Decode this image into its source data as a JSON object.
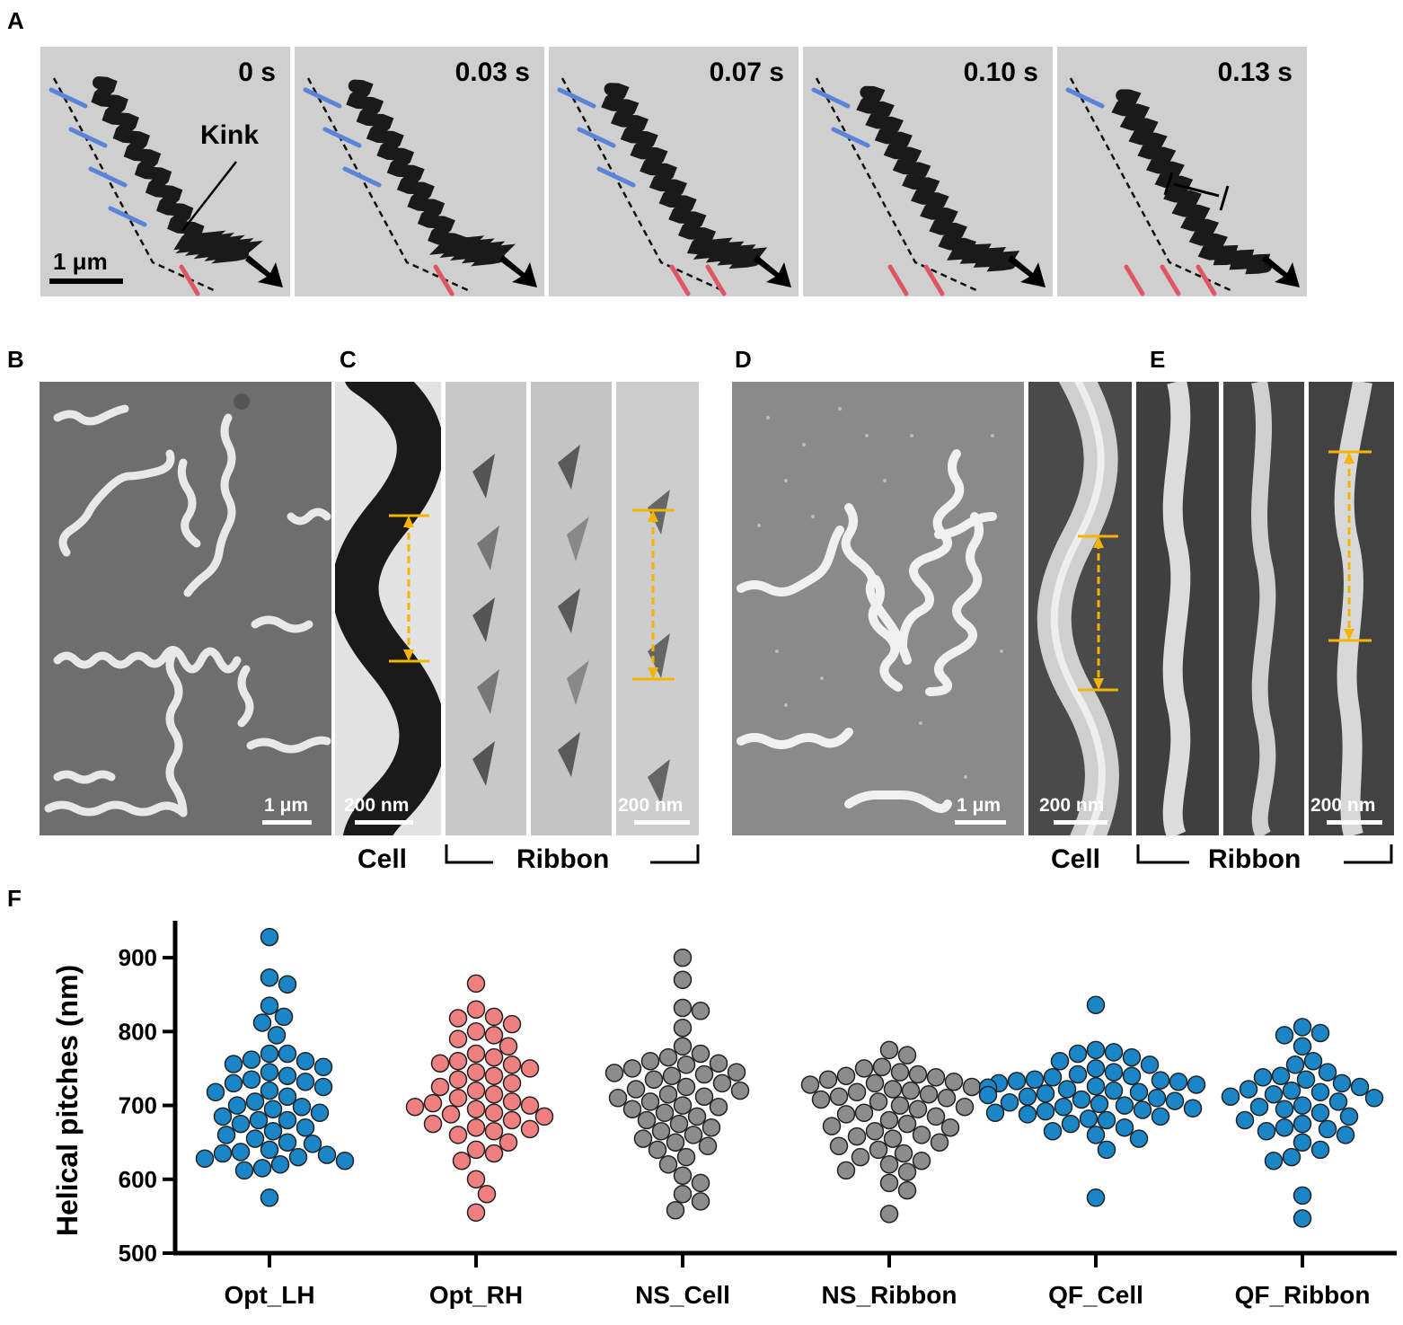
{
  "panels": {
    "A": {
      "label": "A",
      "times": [
        "0 s",
        "0.03 s",
        "0.07 s",
        "0.10 s",
        "0.13 s"
      ],
      "kink_label": "Kink",
      "scale_label": "1 μm"
    },
    "B": {
      "label": "B",
      "scale_label": "1 μm"
    },
    "C": {
      "label": "C",
      "scale_label_cell": "200 nm",
      "scale_label_ribbon": "200 nm",
      "cell_caption": "Cell",
      "ribbon_caption": "Ribbon"
    },
    "D": {
      "label": "D",
      "scale_label": "1 μm"
    },
    "E": {
      "label": "E",
      "scale_label_cell": "200 nm",
      "scale_label_ribbon": "200 nm",
      "cell_caption": "Cell",
      "ribbon_caption": "Ribbon"
    },
    "F": {
      "label": "F"
    }
  },
  "colors": {
    "blue_mark": "#5b84d8",
    "red_mark": "#e05566",
    "pitch_arrow": "#f5b400",
    "lh": "#1a86c7",
    "rh": "#f08080",
    "gray": "#8c8c8c"
  },
  "chart_data": {
    "type": "scatter",
    "ylabel": "Helical pitches (nm)",
    "ylim": [
      500,
      950
    ],
    "yticks": [
      500,
      600,
      700,
      800,
      900
    ],
    "categories": [
      "Opt_LH",
      "Opt_RH",
      "NS_Cell",
      "NS_Ribbon",
      "QF_Cell",
      "QF_Ribbon"
    ],
    "series": [
      {
        "color": "#1a86c7",
        "values": [
          928,
          873,
          864,
          835,
          820,
          812,
          795,
          770,
          770,
          762,
          760,
          756,
          752,
          745,
          740,
          735,
          732,
          730,
          725,
          720,
          718,
          712,
          705,
          700,
          698,
          695,
          690,
          685,
          680,
          680,
          675,
          670,
          665,
          660,
          655,
          650,
          648,
          640,
          637,
          635,
          633,
          630,
          628,
          625,
          620,
          615,
          612,
          575
        ]
      },
      {
        "color": "#f08080",
        "values": [
          865,
          830,
          820,
          818,
          810,
          800,
          795,
          790,
          780,
          770,
          765,
          760,
          757,
          755,
          750,
          745,
          740,
          735,
          730,
          725,
          720,
          715,
          710,
          705,
          703,
          700,
          698,
          695,
          690,
          688,
          685,
          680,
          675,
          670,
          668,
          665,
          660,
          650,
          640,
          635,
          625,
          600,
          580,
          555
        ]
      },
      {
        "color": "#8c8c8c",
        "values": [
          900,
          870,
          832,
          828,
          805,
          780,
          770,
          765,
          760,
          757,
          755,
          750,
          745,
          744,
          742,
          740,
          735,
          730,
          725,
          722,
          720,
          715,
          712,
          710,
          705,
          700,
          698,
          695,
          690,
          685,
          680,
          675,
          670,
          665,
          660,
          655,
          650,
          645,
          640,
          630,
          620,
          605,
          595,
          580,
          570,
          558
        ]
      },
      {
        "color": "#8c8c8c",
        "values": [
          775,
          768,
          752,
          750,
          745,
          742,
          740,
          738,
          735,
          732,
          730,
          728,
          725,
          722,
          720,
          718,
          715,
          712,
          710,
          708,
          705,
          700,
          698,
          695,
          690,
          688,
          685,
          680,
          675,
          672,
          670,
          665,
          660,
          658,
          655,
          650,
          645,
          640,
          635,
          630,
          625,
          620,
          612,
          610,
          595,
          585,
          553
        ]
      },
      {
        "color": "#1a86c7",
        "values": [
          836,
          775,
          772,
          770,
          765,
          760,
          755,
          750,
          745,
          742,
          740,
          738,
          735,
          734,
          733,
          732,
          730,
          728,
          726,
          724,
          722,
          720,
          718,
          716,
          714,
          712,
          710,
          708,
          706,
          704,
          702,
          700,
          698,
          696,
          694,
          692,
          690,
          688,
          685,
          682,
          680,
          675,
          670,
          665,
          660,
          655,
          640,
          575
        ]
      },
      {
        "color": "#1a86c7",
        "values": [
          806,
          798,
          795,
          780,
          760,
          755,
          745,
          740,
          738,
          735,
          730,
          725,
          722,
          720,
          718,
          715,
          712,
          710,
          705,
          700,
          698,
          695,
          690,
          685,
          680,
          675,
          670,
          668,
          665,
          660,
          650,
          640,
          630,
          625,
          578,
          547
        ]
      }
    ]
  }
}
